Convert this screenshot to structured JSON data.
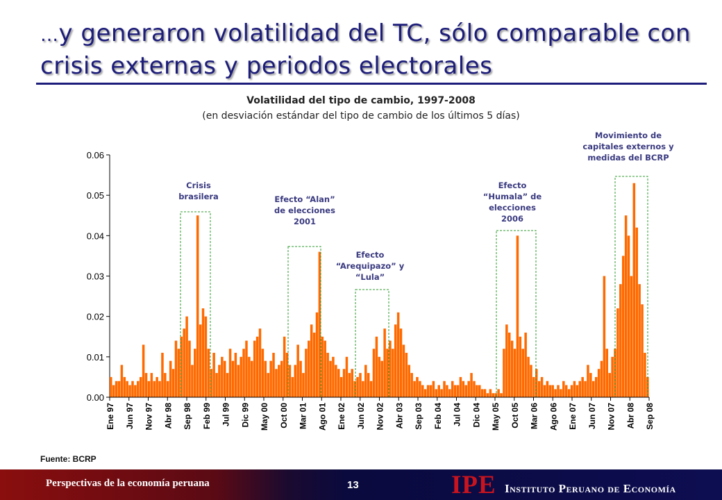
{
  "slide": {
    "title_prefix": "…",
    "title": "y generaron volatilidad del TC, sólo comparable con crisis externas y periodos electorales",
    "source": "Fuente: BCRP",
    "page_number": "13"
  },
  "footer": {
    "left_text": "Perspectivas de la economía peruana",
    "logo": "IPE",
    "org_name": "Instituto Peruano de Economía"
  },
  "annotations": {
    "crisis_brasilera": "Crisis brasilera",
    "efecto_alan": "Efecto “Alan” de elecciones 2001",
    "efecto_arequipazo": "Efecto “Arequipazo” y “Lula”",
    "efecto_humala": "Efecto “Humala” de elecciones 2006",
    "movimiento": "Movimiento de capitales externos y medidas del BCRP"
  },
  "colors": {
    "title": "#1c1c7a",
    "series": "#ff6a00",
    "annotation_box": "#2e9a2e",
    "annotation_text": "#3a3a80"
  },
  "chart_data": {
    "type": "bar",
    "title": "Volatilidad del tipo de cambio, 1997-2008",
    "subtitle": "(en desviación estándar del tipo de cambio de los últimos 5 días)",
    "xlabel": "",
    "ylabel": "",
    "ylim": [
      0,
      0.06
    ],
    "yticks": [
      "0.00",
      "0.01",
      "0.02",
      "0.03",
      "0.04",
      "0.05",
      "0.06"
    ],
    "grid": false,
    "x_range": [
      "1997-01",
      "2008-09"
    ],
    "x_tick_labels": [
      "Ene 97",
      "Jun 97",
      "Nov 97",
      "Abr 98",
      "Sep 98",
      "Feb 99",
      "Jul 99",
      "Dic 99",
      "May 00",
      "Oct 00",
      "Mar 01",
      "Ago 01",
      "Ene 02",
      "Jun 02",
      "Nov 02",
      "Abr 03",
      "Sep 03",
      "Feb 04",
      "Jul 04",
      "Dic 04",
      "May 05",
      "Oct 05",
      "Mar 06",
      "Ago 06",
      "Ene 07",
      "Jun 07",
      "Nov 07",
      "Abr 08",
      "Sep 08"
    ],
    "series": [
      {
        "values": [
          0.005,
          0.003,
          0.004,
          0.004,
          0.008,
          0.005,
          0.004,
          0.003,
          0.004,
          0.003,
          0.004,
          0.005,
          0.013,
          0.006,
          0.004,
          0.006,
          0.004,
          0.005,
          0.004,
          0.011,
          0.006,
          0.004,
          0.009,
          0.007,
          0.014,
          0.012,
          0.015,
          0.017,
          0.02,
          0.014,
          0.008,
          0.012,
          0.045,
          0.018,
          0.022,
          0.02,
          0.012,
          0.007,
          0.011,
          0.006,
          0.008,
          0.01,
          0.009,
          0.006,
          0.012,
          0.009,
          0.011,
          0.008,
          0.01,
          0.012,
          0.014,
          0.01,
          0.009,
          0.014,
          0.015,
          0.017,
          0.012,
          0.009,
          0.006,
          0.009,
          0.011,
          0.007,
          0.008,
          0.009,
          0.015,
          0.011,
          0.008,
          0.005,
          0.008,
          0.013,
          0.009,
          0.006,
          0.012,
          0.014,
          0.018,
          0.016,
          0.021,
          0.036,
          0.015,
          0.014,
          0.011,
          0.009,
          0.01,
          0.008,
          0.007,
          0.005,
          0.007,
          0.01,
          0.006,
          0.007,
          0.004,
          0.005,
          0.006,
          0.004,
          0.008,
          0.006,
          0.004,
          0.012,
          0.015,
          0.01,
          0.009,
          0.017,
          0.012,
          0.014,
          0.012,
          0.018,
          0.021,
          0.017,
          0.013,
          0.011,
          0.008,
          0.006,
          0.004,
          0.005,
          0.004,
          0.003,
          0.002,
          0.003,
          0.003,
          0.004,
          0.002,
          0.003,
          0.002,
          0.004,
          0.003,
          0.002,
          0.004,
          0.003,
          0.003,
          0.005,
          0.004,
          0.003,
          0.004,
          0.006,
          0.004,
          0.003,
          0.003,
          0.002,
          0.002,
          0.001,
          0.002,
          0.001,
          0.001,
          0.002,
          0.001,
          0.012,
          0.018,
          0.016,
          0.014,
          0.012,
          0.04,
          0.015,
          0.012,
          0.016,
          0.01,
          0.008,
          0.005,
          0.007,
          0.004,
          0.005,
          0.003,
          0.004,
          0.003,
          0.003,
          0.002,
          0.003,
          0.002,
          0.004,
          0.003,
          0.002,
          0.003,
          0.004,
          0.003,
          0.004,
          0.005,
          0.004,
          0.008,
          0.006,
          0.004,
          0.005,
          0.007,
          0.009,
          0.03,
          0.012,
          0.006,
          0.01,
          0.012,
          0.022,
          0.028,
          0.035,
          0.045,
          0.04,
          0.03,
          0.053,
          0.042,
          0.028,
          0.023,
          0.011,
          0.005
        ]
      }
    ]
  }
}
